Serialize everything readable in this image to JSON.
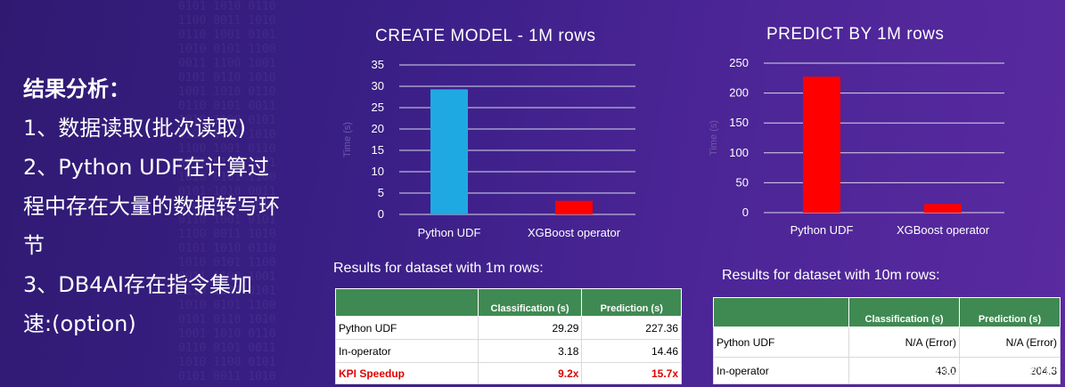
{
  "slide": {
    "left_heading": "结果分析：",
    "left_lines": [
      "1、数据读取(批次读取)",
      "2、Python UDF在计算过",
      "程中存在大量的数据转写环",
      "节",
      "3、DB4AI存在指令集加",
      "速:(option)"
    ],
    "watermark": "CSDN @前端小白在前进"
  },
  "chart_data": [
    {
      "type": "bar",
      "title": "CREATE MODEL - 1M rows",
      "categories": [
        "Python UDF",
        "XGBoost operator"
      ],
      "values": [
        29.29,
        3.18
      ],
      "colors": [
        "#1fa9e2",
        "#ff0000"
      ],
      "ylabel": "Time (s)",
      "ylim": [
        0,
        35
      ],
      "yticks": [
        0,
        5,
        10,
        15,
        20,
        25,
        30,
        35
      ],
      "grid": true
    },
    {
      "type": "bar",
      "title": "PREDICT BY 1M rows",
      "categories": [
        "Python UDF",
        "XGBoost operator"
      ],
      "values": [
        227.36,
        14.46
      ],
      "colors": [
        "#ff0000",
        "#ff0000"
      ],
      "ylabel": "Time (s)",
      "ylim": [
        0,
        250
      ],
      "yticks": [
        0,
        50,
        100,
        150,
        200,
        250
      ],
      "grid": true
    }
  ],
  "table1": {
    "caption": "Results for dataset with 1m rows:",
    "headers": [
      "",
      "Classification (s)",
      "Prediction (s)"
    ],
    "rows": [
      [
        "Python UDF",
        "29.29",
        "227.36"
      ],
      [
        "In-operator",
        "3.18",
        "14.46"
      ],
      [
        "KPI Speedup",
        "9.2x",
        "15.7x"
      ]
    ]
  },
  "table2": {
    "caption": "Results for dataset with 10m rows:",
    "headers": [
      "",
      "Classification (s)",
      "Prediction (s)"
    ],
    "rows": [
      [
        "Python UDF",
        "N/A (Error)",
        "N/A (Error)"
      ],
      [
        "In-operator",
        "43.0",
        "204.3"
      ]
    ]
  }
}
